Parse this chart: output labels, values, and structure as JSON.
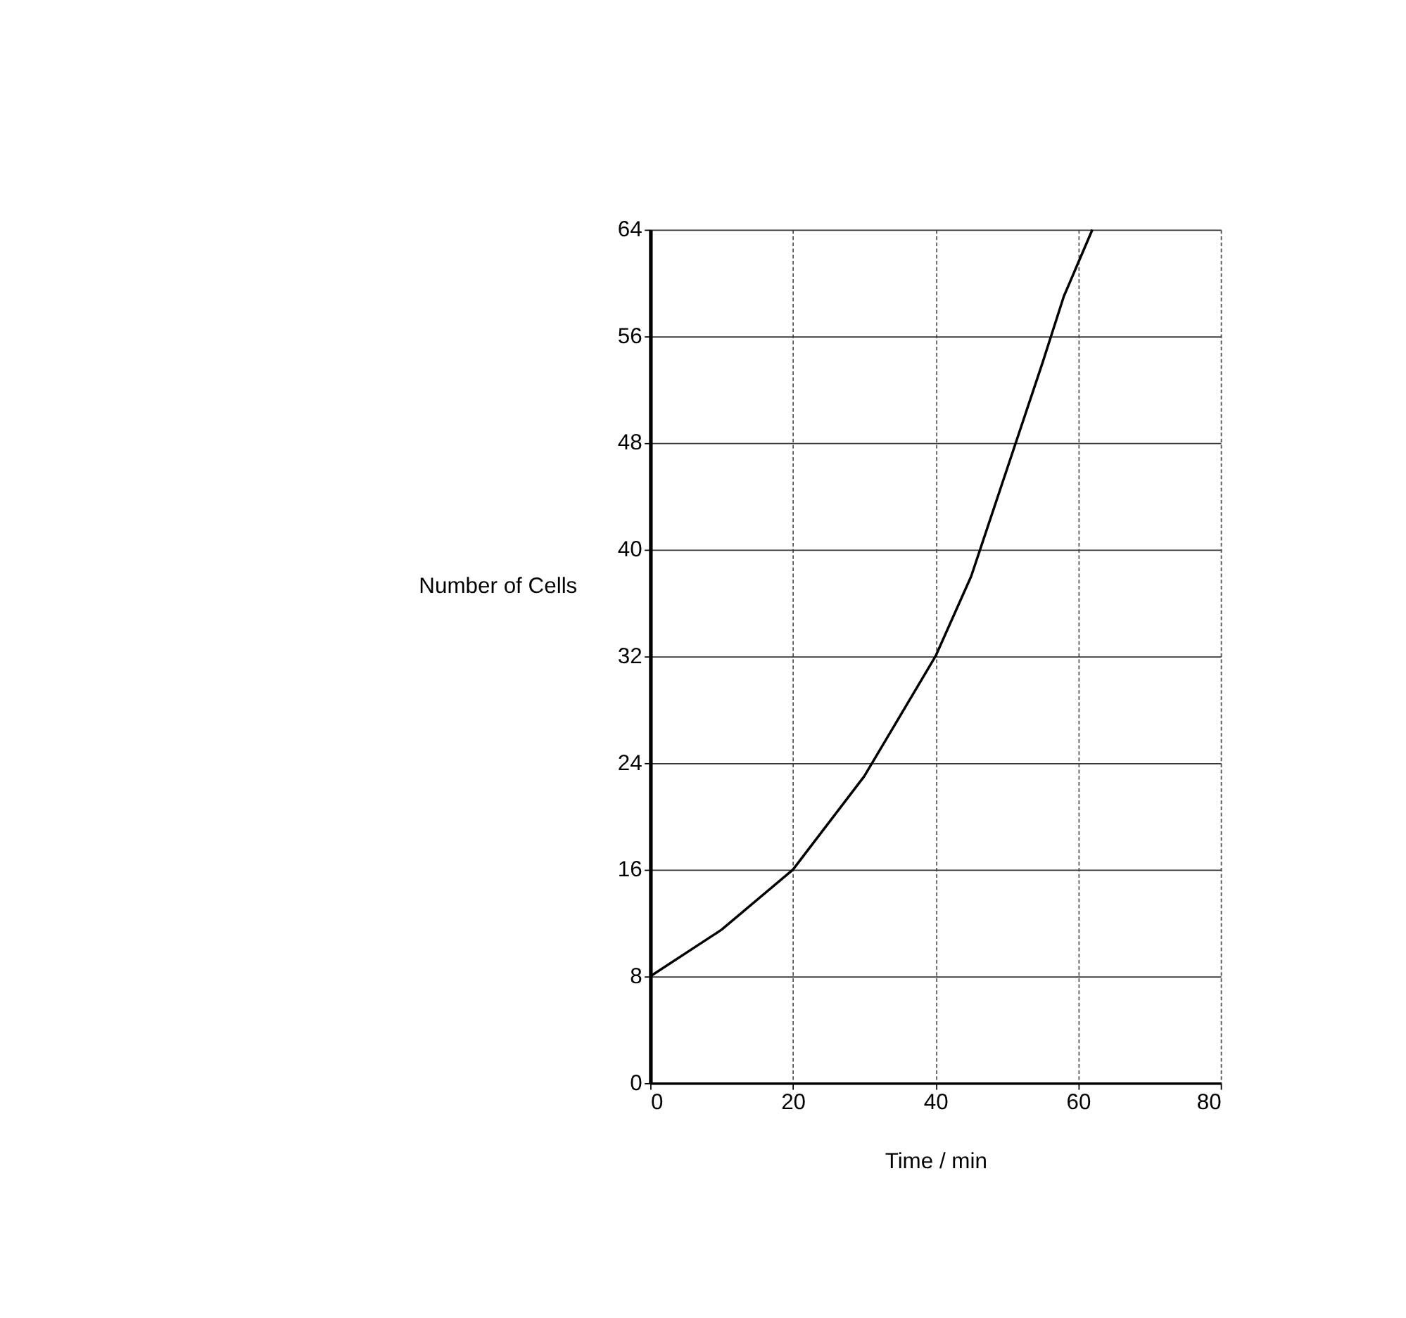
{
  "chart_data": {
    "type": "line",
    "xlabel": "Time / min",
    "ylabel": "Number of Cells",
    "series": [
      {
        "color": "#000000",
        "x": [
          0,
          10,
          20,
          30,
          40,
          45,
          50,
          55,
          58,
          62
        ],
        "values": [
          8,
          11.5,
          16,
          23,
          32,
          38,
          46,
          54,
          59,
          64
        ]
      }
    ],
    "xlim": [
      0,
      80
    ],
    "ylim": [
      0,
      64
    ],
    "xticks": [
      0,
      20,
      40,
      60,
      80
    ],
    "yticks": [
      0,
      8,
      16,
      24,
      32,
      40,
      48,
      56,
      64
    ],
    "grid": true,
    "marker": "none",
    "line_style": "solid"
  }
}
